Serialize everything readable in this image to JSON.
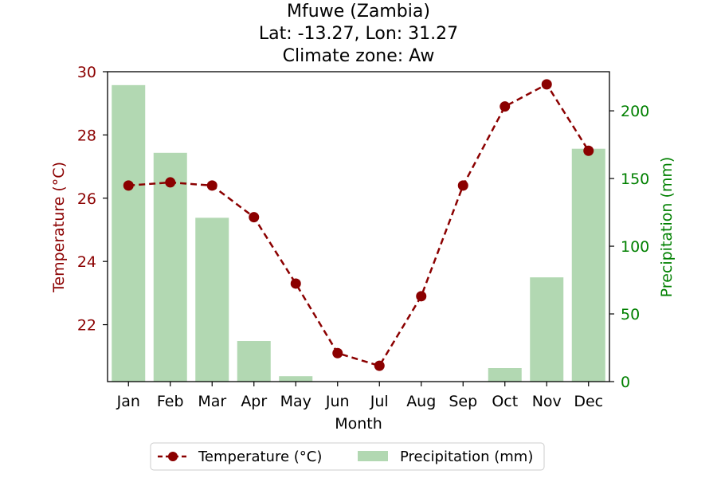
{
  "chart_data": {
    "type": "bar",
    "title_lines": [
      "Mfuwe (Zambia)",
      "Lat: -13.27, Lon: 31.27",
      "Climate zone: Aw"
    ],
    "xlabel": "Month",
    "ylabel_left": "Temperature (°C)",
    "ylabel_right": "Precipitation (mm)",
    "categories": [
      "Jan",
      "Feb",
      "Mar",
      "Apr",
      "May",
      "Jun",
      "Jul",
      "Aug",
      "Sep",
      "Oct",
      "Nov",
      "Dec"
    ],
    "series": [
      {
        "name": "Temperature (°C)",
        "type": "line",
        "axis": "left",
        "color": "#8b0000",
        "values": [
          26.4,
          26.5,
          26.4,
          25.4,
          23.3,
          21.1,
          20.7,
          22.9,
          26.4,
          28.9,
          29.6,
          27.5
        ]
      },
      {
        "name": "Precipitation (mm)",
        "type": "bar",
        "axis": "right",
        "color": "#b2d8b2",
        "values": [
          219,
          169,
          121,
          30,
          4,
          0,
          0,
          0,
          0,
          10,
          77,
          172
        ]
      }
    ],
    "ylim_left": [
      20.2,
      30
    ],
    "yticks_left": [
      22,
      24,
      26,
      28,
      30
    ],
    "ylim_right": [
      0,
      228.9
    ],
    "yticks_right": [
      0,
      50,
      100,
      150,
      200
    ],
    "legend_position": "bottom-center",
    "grid": false
  }
}
